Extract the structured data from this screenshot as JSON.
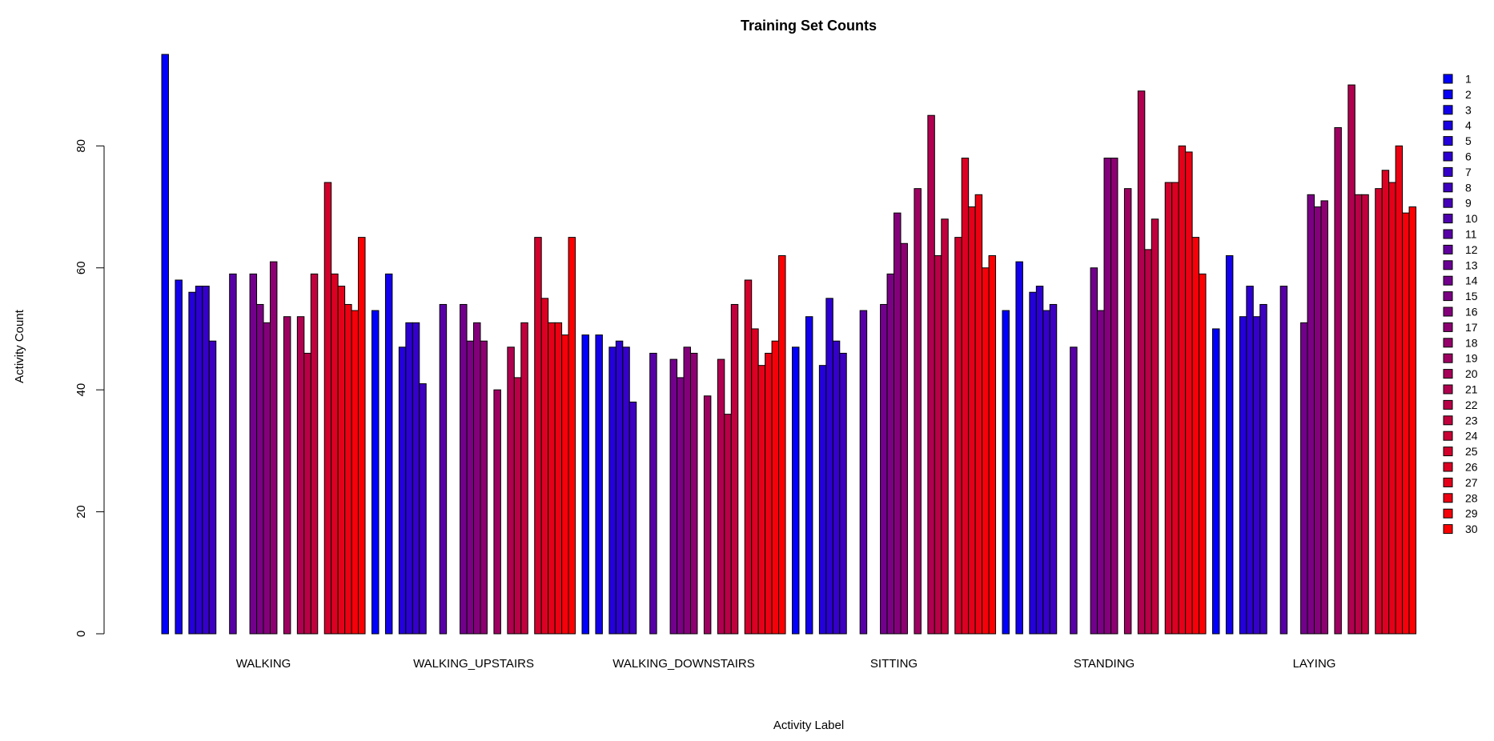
{
  "chart_data": {
    "type": "bar",
    "title": "Training Set Counts",
    "xlabel": "Activity Label",
    "ylabel": "Activity Count",
    "ylim": [
      0,
      95
    ],
    "yticks": [
      0,
      20,
      40,
      60,
      80
    ],
    "grid": false,
    "legend_position": "right",
    "color_start": "#0000FF",
    "color_end": "#FF0000",
    "categories": [
      "WALKING",
      "WALKING_UPSTAIRS",
      "WALKING_DOWNSTAIRS",
      "SITTING",
      "STANDING",
      "LAYING"
    ],
    "series": [
      {
        "name": "1",
        "values": [
          95,
          53,
          49,
          47,
          53,
          50
        ]
      },
      {
        "name": "2",
        "values": [
          0,
          0,
          0,
          0,
          0,
          0
        ]
      },
      {
        "name": "3",
        "values": [
          58,
          59,
          49,
          52,
          61,
          62
        ]
      },
      {
        "name": "4",
        "values": [
          0,
          0,
          0,
          0,
          0,
          0
        ]
      },
      {
        "name": "5",
        "values": [
          56,
          47,
          47,
          44,
          56,
          52
        ]
      },
      {
        "name": "6",
        "values": [
          57,
          51,
          48,
          55,
          57,
          57
        ]
      },
      {
        "name": "7",
        "values": [
          57,
          51,
          47,
          48,
          53,
          52
        ]
      },
      {
        "name": "8",
        "values": [
          48,
          41,
          38,
          46,
          54,
          54
        ]
      },
      {
        "name": "9",
        "values": [
          0,
          0,
          0,
          0,
          0,
          0
        ]
      },
      {
        "name": "10",
        "values": [
          0,
          0,
          0,
          0,
          0,
          0
        ]
      },
      {
        "name": "11",
        "values": [
          59,
          54,
          46,
          53,
          47,
          57
        ]
      },
      {
        "name": "12",
        "values": [
          0,
          0,
          0,
          0,
          0,
          0
        ]
      },
      {
        "name": "13",
        "values": [
          0,
          0,
          0,
          0,
          0,
          0
        ]
      },
      {
        "name": "14",
        "values": [
          59,
          54,
          45,
          54,
          60,
          51
        ]
      },
      {
        "name": "15",
        "values": [
          54,
          48,
          42,
          59,
          53,
          72
        ]
      },
      {
        "name": "16",
        "values": [
          51,
          51,
          47,
          69,
          78,
          70
        ]
      },
      {
        "name": "17",
        "values": [
          61,
          48,
          46,
          64,
          78,
          71
        ]
      },
      {
        "name": "18",
        "values": [
          0,
          0,
          0,
          0,
          0,
          0
        ]
      },
      {
        "name": "19",
        "values": [
          52,
          40,
          39,
          73,
          73,
          83
        ]
      },
      {
        "name": "20",
        "values": [
          0,
          0,
          0,
          0,
          0,
          0
        ]
      },
      {
        "name": "21",
        "values": [
          52,
          47,
          45,
          85,
          89,
          90
        ]
      },
      {
        "name": "22",
        "values": [
          46,
          42,
          36,
          62,
          63,
          72
        ]
      },
      {
        "name": "23",
        "values": [
          59,
          51,
          54,
          68,
          68,
          72
        ]
      },
      {
        "name": "24",
        "values": [
          0,
          0,
          0,
          0,
          0,
          0
        ]
      },
      {
        "name": "25",
        "values": [
          74,
          65,
          58,
          65,
          74,
          73
        ]
      },
      {
        "name": "26",
        "values": [
          59,
          55,
          50,
          78,
          74,
          76
        ]
      },
      {
        "name": "27",
        "values": [
          57,
          51,
          44,
          70,
          80,
          74
        ]
      },
      {
        "name": "28",
        "values": [
          54,
          51,
          46,
          72,
          79,
          80
        ]
      },
      {
        "name": "29",
        "values": [
          53,
          49,
          48,
          60,
          65,
          69
        ]
      },
      {
        "name": "30",
        "values": [
          65,
          65,
          62,
          62,
          59,
          70
        ]
      }
    ]
  }
}
